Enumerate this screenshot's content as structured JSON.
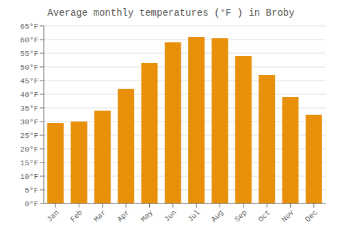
{
  "chart_data": {
    "type": "bar",
    "title": "Average monthly temperatures (°F ) in Broby",
    "categories": [
      "Jan",
      "Feb",
      "Mar",
      "Apr",
      "May",
      "Jun",
      "Jul",
      "Aug",
      "Sep",
      "Oct",
      "Nov",
      "Dec"
    ],
    "values": [
      29.5,
      30.0,
      34.0,
      42.0,
      51.5,
      59.0,
      61.0,
      60.5,
      54.0,
      47.0,
      39.0,
      32.5
    ],
    "color": "#E8900A",
    "ylim": [
      0,
      65
    ],
    "yticks": [
      {
        "value": 0,
        "label": "0°F"
      },
      {
        "value": 5,
        "label": "5°F"
      },
      {
        "value": 10,
        "label": "10°F"
      },
      {
        "value": 15,
        "label": "15°F"
      },
      {
        "value": 20,
        "label": "20°F"
      },
      {
        "value": 25,
        "label": "25°F"
      },
      {
        "value": 30,
        "label": "30°F"
      },
      {
        "value": 35,
        "label": "35°F"
      },
      {
        "value": 40,
        "label": "40°F"
      },
      {
        "value": 45,
        "label": "45°F"
      },
      {
        "value": 50,
        "label": "50°F"
      },
      {
        "value": 55,
        "label": "55°F"
      },
      {
        "value": 60,
        "label": "60°F"
      },
      {
        "value": 65,
        "label": "65°F"
      }
    ],
    "grid": true
  }
}
